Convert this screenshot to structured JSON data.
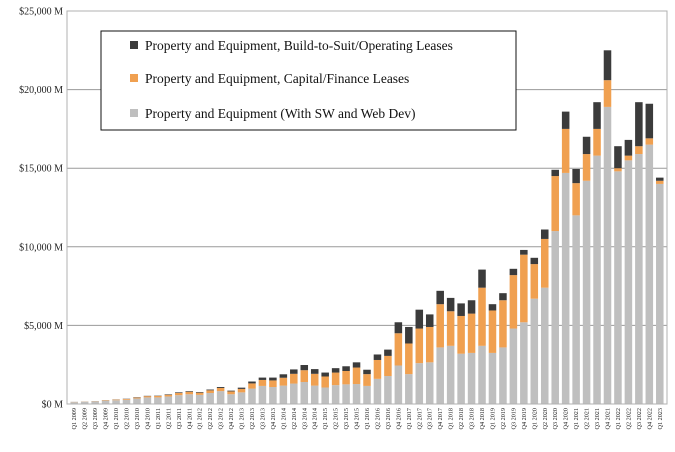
{
  "chart_data": {
    "type": "bar",
    "stacked": true,
    "title": "",
    "xlabel": "",
    "ylabel": "",
    "ylim": [
      0,
      25000
    ],
    "yticks": [
      "$0 M",
      "$5,000 M",
      "$10,000 M",
      "$15,000 M",
      "$20,000 M",
      "$25,000 M"
    ],
    "grid": true,
    "legend_position": "top-left",
    "colors": {
      "pe": "#bfbfbf",
      "capital": "#f0a050",
      "bts": "#3b3b3b",
      "gridline": "#9a9a9a"
    },
    "categories": [
      "Q1 2009",
      "Q2 2009",
      "Q3 2009",
      "Q4 2009",
      "Q1 2010",
      "Q2 2010",
      "Q3 2010",
      "Q4 2010",
      "Q1 2011",
      "Q2 2011",
      "Q3 2011",
      "Q4 2011",
      "Q1 2012",
      "Q2 2012",
      "Q3 2012",
      "Q4 2012",
      "Q1 2013",
      "Q2 2013",
      "Q3 2013",
      "Q4 2013",
      "Q1 2014",
      "Q2 2014",
      "Q3 2014",
      "Q4 2014",
      "Q1 2015",
      "Q2 2015",
      "Q3 2015",
      "Q4 2015",
      "Q1 2016",
      "Q2 2016",
      "Q3 2016",
      "Q4 2016",
      "Q1 2017",
      "Q2 2017",
      "Q3 2017",
      "Q4 2017",
      "Q1 2018",
      "Q2 2018",
      "Q3 2018",
      "Q4 2018",
      "Q1 2019",
      "Q2 2019",
      "Q3 2019",
      "Q4 2019",
      "Q1 2020",
      "Q2 2020",
      "Q3 2020",
      "Q4 2020",
      "Q1 2021",
      "Q2 2021",
      "Q3 2021",
      "Q4 2021",
      "Q1 2022",
      "Q2 2022",
      "Q3 2022",
      "Q4 2022",
      "Q1 2023"
    ],
    "series": [
      {
        "name": "Property and Equipment (With SW and Web Dev)",
        "key": "pe",
        "values": [
          120,
          140,
          160,
          200,
          240,
          270,
          350,
          420,
          420,
          480,
          560,
          620,
          580,
          700,
          820,
          620,
          740,
          980,
          1150,
          1080,
          1170,
          1300,
          1400,
          1170,
          1050,
          1200,
          1250,
          1270,
          1150,
          1600,
          1780,
          2450,
          1900,
          2600,
          2650,
          3600,
          3700,
          3200,
          3250,
          3700,
          3250,
          3600,
          4800,
          5200,
          6700,
          7400,
          11000,
          14700,
          12000,
          14200,
          15800,
          18900,
          14800,
          15500,
          15900,
          16500,
          14000
        ]
      },
      {
        "name": "Property and Equipment, Capital/Finance Leases",
        "key": "capital",
        "values": [
          10,
          10,
          15,
          30,
          40,
          50,
          60,
          80,
          90,
          110,
          140,
          160,
          140,
          170,
          200,
          180,
          220,
          330,
          380,
          420,
          500,
          620,
          750,
          750,
          700,
          800,
          850,
          1050,
          750,
          1200,
          1280,
          2050,
          1950,
          2200,
          2250,
          2750,
          2200,
          2400,
          2500,
          3700,
          2700,
          3000,
          3400,
          4300,
          2200,
          3100,
          3500,
          2800,
          2050,
          1700,
          1700,
          1700,
          200,
          300,
          500,
          400,
          200
        ]
      },
      {
        "name": "Property and Equipment, Build-to-Suit/Operating Leases",
        "key": "bts",
        "values": [
          5,
          5,
          5,
          10,
          10,
          15,
          20,
          20,
          20,
          30,
          40,
          40,
          40,
          50,
          60,
          50,
          80,
          120,
          150,
          180,
          220,
          280,
          330,
          300,
          250,
          280,
          300,
          330,
          280,
          350,
          400,
          700,
          1050,
          1200,
          800,
          850,
          850,
          800,
          850,
          1150,
          400,
          450,
          400,
          300,
          400,
          600,
          400,
          1100,
          900,
          1100,
          1700,
          1900,
          1400,
          1000,
          2800,
          2200,
          200
        ]
      }
    ]
  },
  "legend": {
    "items": [
      {
        "label": "Property and Equipment, Build-to-Suit/Operating Leases",
        "color": "#3b3b3b"
      },
      {
        "label": "Property and Equipment, Capital/Finance Leases",
        "color": "#f0a050"
      },
      {
        "label": "Property and Equipment (With SW and Web Dev)",
        "color": "#bfbfbf"
      }
    ]
  }
}
